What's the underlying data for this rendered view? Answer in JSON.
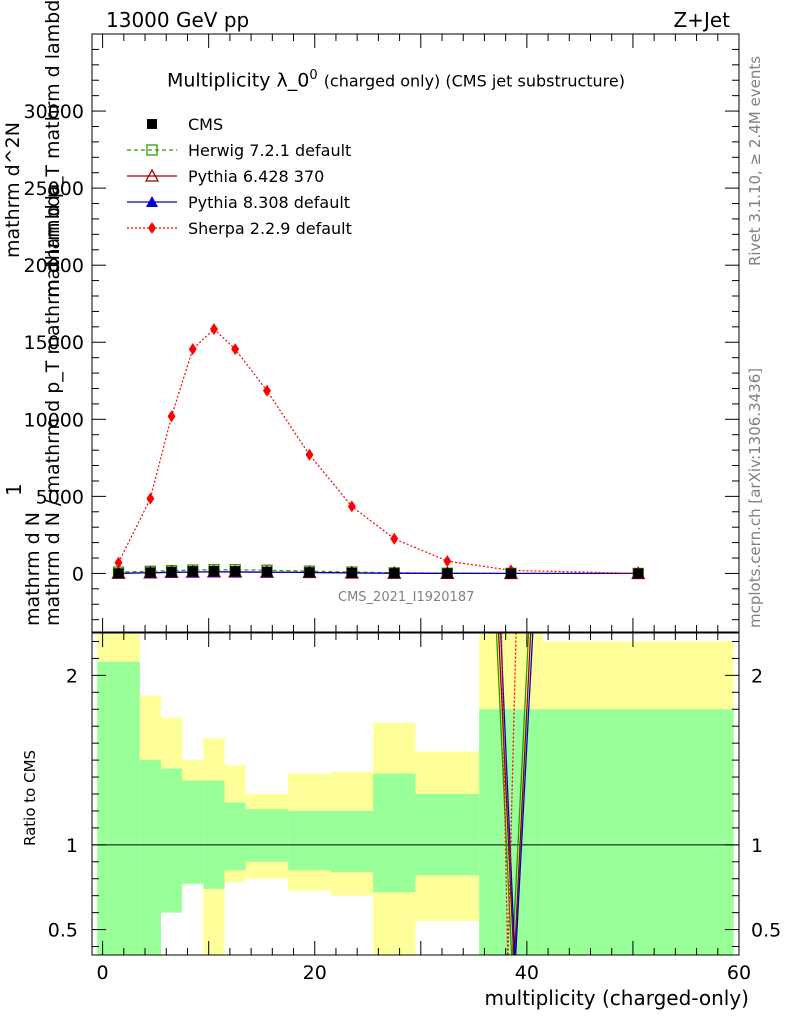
{
  "header": {
    "left": "13000 GeV pp",
    "right": "Z+Jet"
  },
  "side_labels": {
    "rivet": "Rivet 3.1.10, ≥ 2.4M events",
    "mcplots": "mcplots.cern.ch [arXiv:1306.3436]"
  },
  "watermark": "CMS_2021_I1920187",
  "chart_data": [
    {
      "type": "line",
      "title": "Multiplicity λ_0^0 (charged only) (CMS jet substructure)",
      "title_parts": {
        "main": "Multiplicity λ_0",
        "sup": "0",
        "paren": "(charged only) (CMS jet substructure)"
      },
      "ylabel_parts": [
        "1",
        "mathrm d N",
        "mathrm d N / mathrm d p_T mathrm d lambda",
        "mathrm d^2N",
        "mathrm d p_T mathrm d lambda"
      ],
      "xlim": [
        -1,
        60
      ],
      "ylim": [
        -3800,
        35000
      ],
      "yticks": [
        0,
        5000,
        10000,
        15000,
        20000,
        25000,
        30000
      ],
      "ytick_labels": [
        "0",
        "5000",
        "10000",
        "15000",
        "20000",
        "25000",
        "30000"
      ],
      "legend_position": "top-left",
      "series": [
        {
          "name": "CMS",
          "color": "#000000",
          "marker": "square-filled",
          "style": "none",
          "x": [
            1.5,
            4.5,
            6.5,
            8.5,
            10.5,
            12.5,
            15.5,
            19.5,
            23.5,
            27.5,
            32.5,
            38.5,
            50.5
          ],
          "y": [
            10,
            70,
            110,
            150,
            160,
            150,
            120,
            80,
            40,
            15,
            5,
            1,
            0
          ]
        },
        {
          "name": "Herwig 7.2.1 default",
          "color": "#339900",
          "marker": "square-open",
          "style": "dashed",
          "x": [
            1.5,
            4.5,
            6.5,
            8.5,
            10.5,
            12.5,
            15.5,
            19.5,
            23.5,
            27.5,
            32.5,
            38.5,
            50.5
          ],
          "y": [
            90,
            140,
            180,
            220,
            240,
            240,
            210,
            150,
            90,
            40,
            15,
            5,
            0
          ]
        },
        {
          "name": "Pythia 6.428 370",
          "color": "#990000",
          "marker": "triangle-open",
          "style": "solid",
          "x": [
            1.5,
            4.5,
            6.5,
            8.5,
            10.5,
            12.5,
            15.5,
            19.5,
            23.5,
            27.5,
            32.5,
            38.5,
            50.5
          ],
          "y": [
            10,
            40,
            70,
            90,
            100,
            95,
            80,
            60,
            30,
            12,
            4,
            1,
            0
          ]
        },
        {
          "name": "Pythia 8.308 default",
          "color": "#0000cc",
          "marker": "triangle-filled",
          "style": "solid",
          "x": [
            1.5,
            4.5,
            6.5,
            8.5,
            10.5,
            12.5,
            15.5,
            19.5,
            23.5,
            27.5,
            32.5,
            38.5,
            50.5
          ],
          "y": [
            10,
            45,
            75,
            95,
            105,
            100,
            85,
            65,
            35,
            14,
            5,
            1,
            0
          ]
        },
        {
          "name": "Sherpa 2.2.9 default",
          "color": "#ff0000",
          "marker": "diamond-filled",
          "style": "dotted",
          "x": [
            1.5,
            4.5,
            6.5,
            8.5,
            10.5,
            12.5,
            15.5,
            19.5,
            23.5,
            27.5,
            32.5,
            38.5,
            50.5
          ],
          "y": [
            700,
            4850,
            10200,
            14550,
            15850,
            14550,
            11850,
            7700,
            4350,
            2250,
            800,
            200,
            0
          ]
        }
      ]
    },
    {
      "type": "area",
      "ylabel": "Ratio to CMS",
      "xlabel": "multiplicity (charged-only)",
      "xlim": [
        -1,
        60
      ],
      "ylim": [
        0.35,
        2.25
      ],
      "xticks": [
        0,
        20,
        40,
        60
      ],
      "xtick_labels": [
        "0",
        "20",
        "40",
        "60"
      ],
      "yticks": [
        0.5,
        1,
        2
      ],
      "ytick_labels": [
        "0.5",
        "1",
        "2"
      ],
      "bands": [
        {
          "x0": -0.5,
          "x1": 3.5,
          "g_lo": 0.35,
          "g_hi": 2.08,
          "y_lo": 0.35,
          "y_hi": 2.25
        },
        {
          "x0": 3.5,
          "x1": 5.5,
          "g_lo": 0.35,
          "g_hi": 1.5,
          "y_lo": 0.6,
          "y_hi": 1.88
        },
        {
          "x0": 5.5,
          "x1": 7.5,
          "g_lo": 0.6,
          "g_hi": 1.45,
          "y_lo": 0.68,
          "y_hi": 1.75
        },
        {
          "x0": 7.5,
          "x1": 9.5,
          "g_lo": 0.77,
          "g_hi": 1.38,
          "y_lo": 0.84,
          "y_hi": 1.5
        },
        {
          "x0": 9.5,
          "x1": 11.5,
          "g_lo": 0.74,
          "g_hi": 1.38,
          "y_lo": 0.35,
          "y_hi": 1.63
        },
        {
          "x0": 11.5,
          "x1": 13.5,
          "g_lo": 0.85,
          "g_hi": 1.25,
          "y_lo": 0.78,
          "y_hi": 1.47
        },
        {
          "x0": 13.5,
          "x1": 17.5,
          "g_lo": 0.9,
          "g_hi": 1.21,
          "y_lo": 0.8,
          "y_hi": 1.3
        },
        {
          "x0": 17.5,
          "x1": 21.5,
          "g_lo": 0.85,
          "g_hi": 1.2,
          "y_lo": 0.73,
          "y_hi": 1.42
        },
        {
          "x0": 21.5,
          "x1": 25.5,
          "g_lo": 0.84,
          "g_hi": 1.2,
          "y_lo": 0.7,
          "y_hi": 1.43
        },
        {
          "x0": 25.5,
          "x1": 29.5,
          "g_lo": 0.72,
          "g_hi": 1.42,
          "y_lo": 0.35,
          "y_hi": 1.72
        },
        {
          "x0": 29.5,
          "x1": 35.5,
          "g_lo": 0.82,
          "g_hi": 1.3,
          "y_lo": 0.55,
          "y_hi": 1.55
        },
        {
          "x0": 35.5,
          "x1": 41.5,
          "g_lo": 0.35,
          "g_hi": 1.8,
          "y_lo": 0.35,
          "y_hi": 2.25
        },
        {
          "x0": 41.5,
          "x1": 59.5,
          "g_lo": 0.35,
          "g_hi": 1.8,
          "y_lo": 0.35,
          "y_hi": 2.2
        }
      ],
      "ratio_lines": [
        {
          "name": "Herwig 7.2.1 default",
          "color": "#339900",
          "x": [
            37.1,
            38.6,
            40.2
          ],
          "y": [
            2.3,
            0.3,
            2.3
          ]
        },
        {
          "name": "Pythia 6.428 370",
          "color": "#990000",
          "x": [
            37.3,
            38.8,
            40.4
          ],
          "y": [
            2.3,
            0.3,
            2.3
          ]
        },
        {
          "name": "Pythia 8.308 default",
          "color": "#0000cc",
          "x": [
            37.5,
            38.9,
            40.6
          ],
          "y": [
            2.3,
            0.3,
            2.3
          ]
        },
        {
          "name": "Sherpa 2.2.9 default",
          "color": "#ff0000",
          "x": [
            37.6,
            38.2,
            39.0
          ],
          "y": [
            2.3,
            0.3,
            2.3
          ]
        }
      ],
      "colors": {
        "green_band": "#99ff99",
        "yellow_band": "#ffff99"
      }
    }
  ]
}
